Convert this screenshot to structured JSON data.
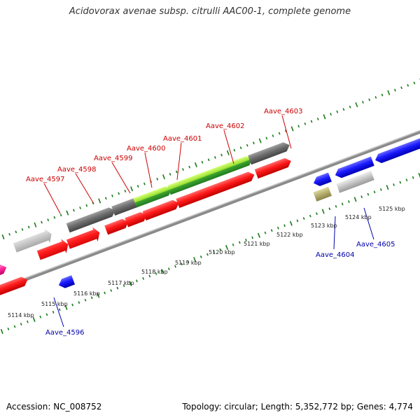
{
  "title": "Acidovorax avenae subsp. citrulli AAC00-1, complete genome",
  "footer": {
    "accession": "Accession: NC_008752",
    "topology": "Topology: circular; Length: 5,352,772 bp; Genes: 4,774"
  },
  "genome_map": {
    "scale_labels": [
      "5114 kbp",
      "5115 kbp",
      "5116 kbp",
      "5117 kbp",
      "5118 kbp",
      "5119 kbp",
      "5120 kbp",
      "5121 kbp",
      "5122 kbp",
      "5123 kbp",
      "5124 kbp",
      "5125 kbp"
    ],
    "forward_gene_labels": [
      "Aave_4597",
      "Aave_4598",
      "Aave_4599",
      "Aave_4600",
      "Aave_4601",
      "Aave_4602",
      "Aave_4603"
    ],
    "reverse_gene_labels": [
      "Aave_4596",
      "Aave_4604",
      "Aave_4605"
    ],
    "colors": {
      "forward_label": "#cc0000",
      "reverse_label": "#0000aa",
      "cds_red": "#ff1a1a",
      "cds_blue": "#1a1aff",
      "pink": "#ff2a9a",
      "gray": "#6e6e6e",
      "light_gray": "#c8c8c8",
      "green": "#3fa62f",
      "light_green": "#b8f040",
      "khaki": "#b8b070",
      "tick": "#1a7a1a",
      "backbone": "#8a8a8a"
    }
  }
}
